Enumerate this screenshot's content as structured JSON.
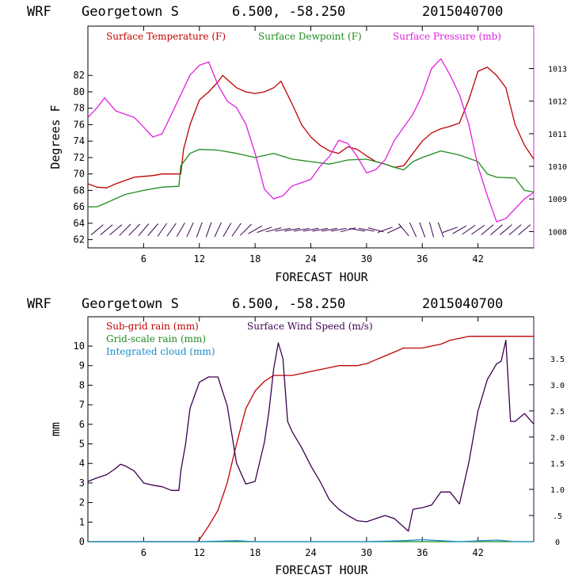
{
  "colors": {
    "temperature": "#c00000",
    "dewpoint": "#1e8c1e",
    "pressure": "#e020e0",
    "subgrid_rain": "#c00000",
    "gridscale_rain": "#1e8c1e",
    "cloud": "#1a8ccc",
    "wind": "#3c0050",
    "wind_barbs": "#3c0050"
  },
  "chart_data": [
    {
      "type": "line",
      "header": {
        "model": "WRF",
        "station": "Georgetown S",
        "coords": "6.500, -58.250",
        "init": "2015040700"
      },
      "xlabel": "FORECAST HOUR",
      "ylabel": "Degrees F",
      "xlim": [
        0,
        48
      ],
      "xticks": [
        "6",
        "12",
        "18",
        "24",
        "30",
        "36",
        "42"
      ],
      "ylim": [
        61,
        88
      ],
      "yticks": [
        "62",
        "64",
        "66",
        "68",
        "70",
        "72",
        "74",
        "76",
        "78",
        "80",
        "82"
      ],
      "y2lim": [
        1007.5,
        1014.3
      ],
      "y2ticks": [
        "1008",
        "1009",
        "1010",
        "1011",
        "1012",
        "1013"
      ],
      "legend": [
        "Surface Temperature (F)",
        "Surface Dewpoint (F)",
        "Surface Pressure (mb)"
      ],
      "series": [
        {
          "name": "Surface Temperature (F)",
          "axis": "left",
          "x": [
            0,
            1,
            2,
            3,
            5,
            7,
            8,
            9,
            9.8,
            10,
            10.3,
            11,
            12,
            13,
            14,
            14.5,
            15,
            16,
            17,
            18,
            19,
            20,
            20.8,
            21,
            22,
            23,
            24,
            25,
            26,
            27,
            28,
            29,
            30,
            31,
            32,
            33,
            34,
            35,
            36,
            37,
            38,
            39,
            40,
            41,
            42,
            43,
            44,
            45,
            46,
            47,
            48
          ],
          "values": [
            68.8,
            68.4,
            68.3,
            68.8,
            69.6,
            69.8,
            70,
            70,
            70,
            70,
            73,
            76,
            79,
            80,
            81.2,
            82,
            81.5,
            80.5,
            80,
            79.8,
            80,
            80.5,
            81.3,
            80.8,
            78.5,
            76,
            74.5,
            73.5,
            72.8,
            72.5,
            73.3,
            73,
            72.2,
            71.5,
            71.2,
            70.8,
            71,
            72.5,
            74,
            75,
            75.5,
            75.8,
            76.2,
            79,
            82.5,
            83,
            82,
            80.5,
            76,
            73.5,
            71.8
          ]
        },
        {
          "name": "Surface Dewpoint (F)",
          "axis": "left",
          "x": [
            0,
            1,
            2,
            4,
            6,
            8,
            9.8,
            10,
            11,
            12,
            14,
            16,
            18,
            20,
            22,
            24,
            26,
            28,
            30,
            32,
            33,
            34,
            35,
            36,
            38,
            40,
            42,
            43,
            44,
            46,
            47,
            48
          ],
          "values": [
            66,
            66,
            66.5,
            67.5,
            68,
            68.4,
            68.5,
            71,
            72.5,
            73,
            72.9,
            72.5,
            72,
            72.5,
            71.8,
            71.5,
            71.2,
            71.7,
            71.8,
            71.2,
            70.8,
            70.5,
            71.5,
            72,
            72.8,
            72.3,
            71.5,
            70,
            69.6,
            69.5,
            68,
            67.8
          ]
        },
        {
          "name": "Surface Pressure (mb)",
          "axis": "right",
          "x": [
            0,
            1,
            1.8,
            3,
            4,
            5,
            6,
            7,
            8,
            9,
            10,
            11,
            12,
            13,
            14,
            15,
            16,
            17,
            18,
            19,
            20,
            21,
            22,
            23,
            24,
            25,
            26,
            27,
            28,
            29,
            30,
            31,
            32,
            33,
            34,
            35,
            36,
            37,
            38,
            39,
            40,
            41,
            42,
            43,
            44,
            45,
            46,
            47,
            48
          ],
          "values": [
            1011.5,
            1011.8,
            1012.1,
            1011.7,
            1011.6,
            1011.5,
            1011.2,
            1010.9,
            1011.0,
            1011.6,
            1012.2,
            1012.8,
            1013.1,
            1013.2,
            1012.5,
            1012.0,
            1011.8,
            1011.3,
            1010.4,
            1009.3,
            1009.0,
            1009.1,
            1009.4,
            1009.5,
            1009.6,
            1010.0,
            1010.3,
            1010.8,
            1010.7,
            1010.3,
            1009.8,
            1009.9,
            1010.2,
            1010.8,
            1011.2,
            1011.6,
            1012.2,
            1013.0,
            1013.3,
            1012.8,
            1012.2,
            1011.3,
            1010.0,
            1009.1,
            1008.3,
            1008.4,
            1008.7,
            1009.0,
            1009.2
          ]
        }
      ],
      "wind_barbs": {
        "x": [
          1,
          2,
          3,
          4,
          5,
          6,
          7,
          8,
          9,
          10,
          11,
          12,
          13,
          14,
          15,
          16,
          17,
          18,
          19,
          20,
          21,
          22,
          23,
          24,
          25,
          26,
          27,
          28,
          29,
          30,
          31,
          32,
          33,
          34,
          35,
          36,
          37,
          38,
          39,
          40,
          41,
          42,
          43,
          44,
          45,
          46,
          47
        ],
        "angle_deg": [
          -40,
          -40,
          -40,
          -45,
          -45,
          -50,
          -50,
          -55,
          -55,
          -60,
          -65,
          -70,
          -70,
          -65,
          -60,
          -55,
          -45,
          -30,
          -20,
          -15,
          -10,
          -10,
          -10,
          -10,
          -10,
          -10,
          -10,
          -15,
          10,
          10,
          15,
          -20,
          -25,
          50,
          65,
          70,
          75,
          70,
          -20,
          -30,
          -35,
          -35,
          -40,
          -40,
          -40,
          -40,
          -40
        ]
      }
    },
    {
      "type": "line",
      "header": {
        "model": "WRF",
        "station": "Georgetown S",
        "coords": "6.500, -58.250",
        "init": "2015040700"
      },
      "xlabel": "FORECAST HOUR",
      "ylabel": "mm",
      "xlim": [
        0,
        48
      ],
      "xticks": [
        "6",
        "12",
        "18",
        "24",
        "30",
        "36",
        "42"
      ],
      "ylim": [
        0,
        11.5
      ],
      "yticks": [
        "0",
        "1",
        "2",
        "3",
        "4",
        "5",
        "6",
        "7",
        "8",
        "9",
        "10"
      ],
      "y2lim": [
        0,
        4.3
      ],
      "y2ticks": [
        "0",
        ".5",
        "1.0",
        "1.5",
        "2.0",
        "2.5",
        "3.0",
        "3.5"
      ],
      "legend": [
        "Sub-grid rain (mm)",
        "Grid-scale rain (mm)",
        "Integrated cloud (mm)",
        "Surface Wind Speed (m/s)"
      ],
      "series": [
        {
          "name": "Sub-grid rain (mm)",
          "axis": "left",
          "x": [
            0,
            11.8,
            12,
            13,
            14,
            15,
            16,
            17,
            18,
            19,
            20,
            21,
            22,
            23,
            24,
            25,
            26,
            27,
            28,
            29,
            30,
            31,
            32,
            33,
            34,
            35,
            36,
            37,
            38,
            39,
            40,
            41,
            42,
            43,
            44,
            45,
            46,
            47,
            48
          ],
          "values": [
            0,
            0,
            0.1,
            0.8,
            1.6,
            3.0,
            5.0,
            6.8,
            7.7,
            8.2,
            8.5,
            8.5,
            8.5,
            8.6,
            8.7,
            8.8,
            8.9,
            9.0,
            9.0,
            9.0,
            9.1,
            9.3,
            9.5,
            9.7,
            9.9,
            9.9,
            9.9,
            10.0,
            10.1,
            10.3,
            10.4,
            10.5,
            10.5,
            10.5,
            10.5,
            10.5,
            10.5,
            10.5,
            10.5
          ]
        },
        {
          "name": "Grid-scale rain (mm)",
          "axis": "left",
          "x": [
            0,
            48
          ],
          "values": [
            0,
            0
          ]
        },
        {
          "name": "Integrated cloud (mm)",
          "axis": "left",
          "x": [
            0,
            12,
            16,
            18,
            30,
            34,
            36,
            38,
            40,
            44,
            46,
            48
          ],
          "values": [
            0,
            0,
            0.05,
            0,
            0,
            0.05,
            0.1,
            0.05,
            0,
            0.08,
            0,
            0
          ]
        },
        {
          "name": "Surface Wind Speed (m/s)",
          "axis": "right",
          "x": [
            0,
            1,
            2,
            3,
            3.5,
            4,
            5,
            6,
            7,
            8,
            9,
            9.8,
            10,
            10.5,
            11,
            12,
            13,
            14,
            15,
            16,
            17,
            18,
            19,
            19.5,
            20,
            20.5,
            21,
            21.5,
            22,
            23,
            24,
            25,
            26,
            27,
            28,
            29,
            30,
            31,
            32,
            33,
            34,
            34.5,
            35,
            36,
            37,
            38,
            39,
            40,
            41,
            42,
            43,
            44,
            44.5,
            45,
            45.5,
            46,
            47,
            48
          ],
          "values": [
            1.15,
            1.22,
            1.28,
            1.4,
            1.48,
            1.45,
            1.35,
            1.12,
            1.08,
            1.05,
            0.98,
            0.98,
            1.35,
            1.85,
            2.55,
            3.05,
            3.15,
            3.15,
            2.6,
            1.5,
            1.1,
            1.15,
            1.9,
            2.5,
            3.3,
            3.8,
            3.5,
            2.3,
            2.1,
            1.8,
            1.45,
            1.15,
            0.8,
            0.62,
            0.5,
            0.4,
            0.38,
            0.44,
            0.5,
            0.44,
            0.28,
            0.2,
            0.62,
            0.65,
            0.7,
            0.95,
            0.95,
            0.72,
            1.5,
            2.5,
            3.1,
            3.4,
            3.45,
            3.85,
            2.3,
            2.3,
            2.45,
            2.25
          ]
        }
      ]
    }
  ]
}
